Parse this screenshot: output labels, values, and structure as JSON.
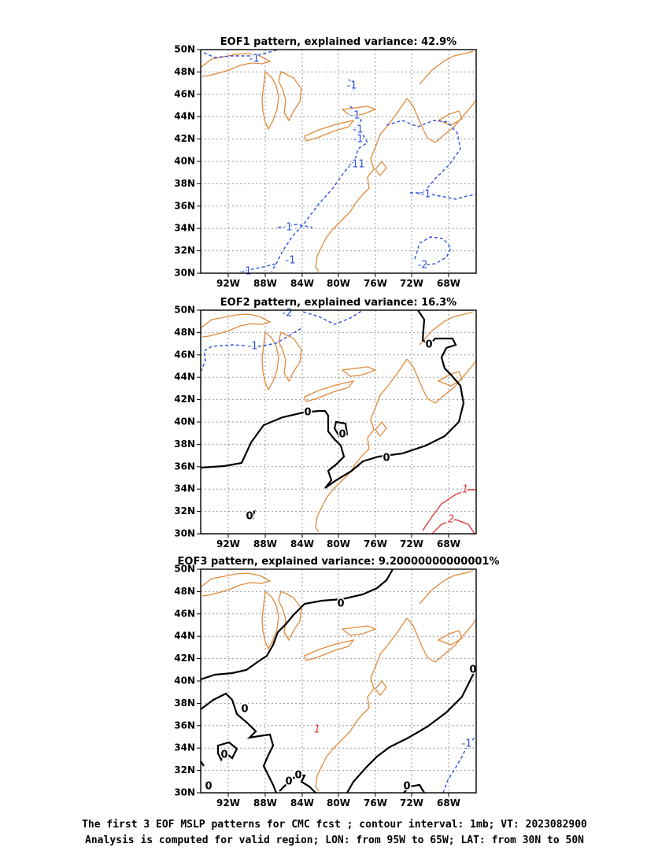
{
  "colors": {
    "coastline": "#e08a3c",
    "grid": "#999999",
    "negative_contour": "#2f4fe0",
    "positive_contour": "#e03a3a",
    "zero_contour": "#000000"
  },
  "lat_labels": [
    "50N",
    "48N",
    "46N",
    "44N",
    "42N",
    "40N",
    "38N",
    "36N",
    "34N",
    "32N",
    "30N"
  ],
  "lon_labels": [
    "92W",
    "88W",
    "84W",
    "80W",
    "76W",
    "72W",
    "68W"
  ],
  "panels": [
    {
      "title": "EOF1 pattern, explained variance: 42.9%",
      "contour_labels": [
        {
          "text": "-1",
          "tone": "neg"
        },
        {
          "text": "-1",
          "tone": "neg"
        },
        {
          "text": "-1",
          "tone": "neg"
        },
        {
          "text": "-1",
          "tone": "neg"
        },
        {
          "text": "-1",
          "tone": "neg"
        },
        {
          "text": "-11",
          "tone": "neg"
        },
        {
          "text": "-1",
          "tone": "neg"
        },
        {
          "text": "-1",
          "tone": "neg"
        },
        {
          "text": "-1",
          "tone": "neg"
        },
        {
          "text": "-1",
          "tone": "neg"
        },
        {
          "text": "-2",
          "tone": "neg"
        }
      ]
    },
    {
      "title": "EOF2 pattern, explained variance: 16.3%",
      "contour_labels": [
        {
          "text": "-2",
          "tone": "neg"
        },
        {
          "text": "-1",
          "tone": "neg"
        },
        {
          "text": "0",
          "tone": "zero"
        },
        {
          "text": "0",
          "tone": "zero"
        },
        {
          "text": "0",
          "tone": "zero"
        },
        {
          "text": "0",
          "tone": "zero"
        },
        {
          "text": "0",
          "tone": "zero"
        },
        {
          "text": "1",
          "tone": "pos"
        },
        {
          "text": "2",
          "tone": "pos"
        }
      ]
    },
    {
      "title": "EOF3 pattern, explained variance: 9.20000000000001%",
      "contour_labels": [
        {
          "text": "0",
          "tone": "zero"
        },
        {
          "text": "0",
          "tone": "zero"
        },
        {
          "text": "0",
          "tone": "zero"
        },
        {
          "text": "0",
          "tone": "zero"
        },
        {
          "text": "0",
          "tone": "zero"
        },
        {
          "text": "0",
          "tone": "zero"
        },
        {
          "text": "0",
          "tone": "zero"
        },
        {
          "text": "0",
          "tone": "zero"
        },
        {
          "text": "1",
          "tone": "pos"
        },
        {
          "text": "-1",
          "tone": "neg"
        }
      ]
    }
  ],
  "caption": {
    "line1": "The first 3 EOF MSLP patterns for CMC fcst ; contour interval: 1mb; VT: 2023082900",
    "line2": "Analysis is computed for valid region; LON: from 95W to 65W; LAT: from 30N to 50N"
  }
}
